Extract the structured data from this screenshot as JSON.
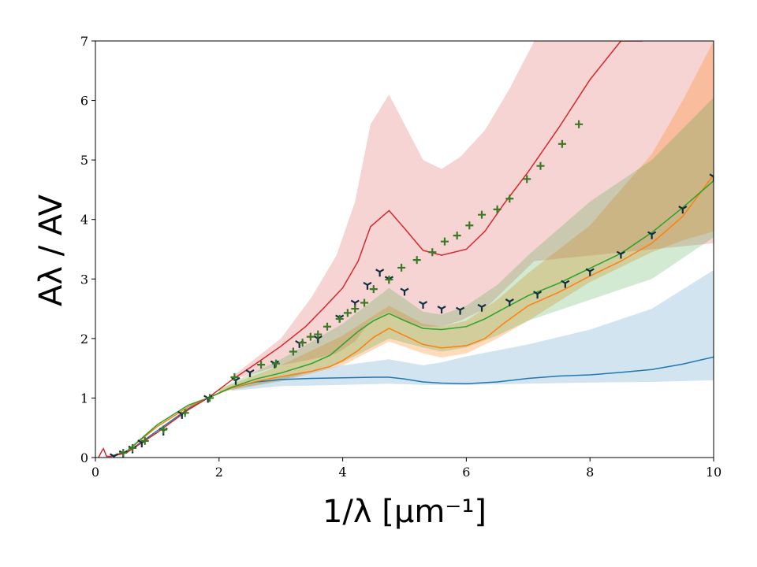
{
  "chart_data": {
    "type": "line",
    "xlabel": "1/λ  [μm⁻¹]",
    "ylabel": "Aλ / AV",
    "xlim": [
      0,
      10
    ],
    "ylim": [
      0,
      7
    ],
    "x_ticks": [
      "0",
      "2",
      "4",
      "6",
      "8",
      "10"
    ],
    "y_ticks": [
      "0",
      "1",
      "2",
      "3",
      "4",
      "5",
      "6",
      "7"
    ],
    "grid": false,
    "legend": "none",
    "bands": [
      {
        "color": "#d62728",
        "opacity": 0.2,
        "x": [
          2.2,
          3.0,
          3.5,
          3.9,
          4.2,
          4.45,
          4.75,
          5.0,
          5.3,
          5.6,
          5.9,
          6.3,
          6.7,
          7.1,
          10.0
        ],
        "upper": [
          1.35,
          2.0,
          2.7,
          3.4,
          4.3,
          5.6,
          6.1,
          5.6,
          5.0,
          4.85,
          5.05,
          5.5,
          6.2,
          7.0,
          7.0
        ],
        "lower": [
          1.3,
          1.55,
          1.65,
          1.75,
          1.95,
          2.3,
          2.45,
          2.3,
          2.2,
          2.2,
          2.3,
          2.5,
          2.9,
          3.3,
          3.6
        ]
      },
      {
        "color": "#ff7f0e",
        "opacity": 0.28,
        "x": [
          2.0,
          3.0,
          4.0,
          4.75,
          5.3,
          5.6,
          6.0,
          6.5,
          7.0,
          8.0,
          9.0,
          9.5,
          10.0
        ],
        "upper": [
          1.15,
          1.55,
          2.05,
          2.55,
          2.25,
          2.2,
          2.3,
          2.65,
          3.1,
          3.9,
          5.1,
          6.0,
          7.0
        ],
        "lower": [
          1.1,
          1.28,
          1.55,
          1.95,
          1.75,
          1.68,
          1.75,
          2.0,
          2.3,
          2.95,
          3.45,
          3.65,
          3.8
        ]
      },
      {
        "color": "#2ca02c",
        "opacity": 0.22,
        "x": [
          2.0,
          3.0,
          4.0,
          4.75,
          5.3,
          5.6,
          6.0,
          6.5,
          7.0,
          8.0,
          9.0,
          10.0
        ],
        "upper": [
          1.15,
          1.65,
          2.25,
          2.85,
          2.45,
          2.4,
          2.55,
          2.9,
          3.4,
          4.3,
          5.0,
          6.05
        ],
        "lower": [
          1.1,
          1.3,
          1.6,
          2.0,
          1.85,
          1.78,
          1.85,
          2.05,
          2.3,
          2.65,
          3.0,
          3.7
        ]
      },
      {
        "color": "#1f77b4",
        "opacity": 0.2,
        "x": [
          2.2,
          3.0,
          4.0,
          4.75,
          5.3,
          5.6,
          6.0,
          7.0,
          8.0,
          9.0,
          10.0
        ],
        "upper": [
          1.15,
          1.35,
          1.55,
          1.65,
          1.55,
          1.6,
          1.7,
          1.9,
          2.15,
          2.5,
          3.15
        ],
        "lower": [
          1.12,
          1.2,
          1.22,
          1.24,
          1.22,
          1.22,
          1.22,
          1.24,
          1.26,
          1.27,
          1.3
        ]
      }
    ],
    "series": [
      {
        "color": "#1f77b4",
        "x": [
          0.25,
          0.5,
          1.0,
          1.5,
          1.82,
          2.2,
          2.6,
          3.0,
          3.5,
          4.0,
          4.5,
          4.75,
          5.0,
          5.3,
          5.6,
          6.0,
          6.5,
          7.0,
          7.5,
          8.0,
          8.5,
          9.0,
          9.5,
          10.0
        ],
        "y": [
          0.02,
          0.08,
          0.45,
          0.82,
          1.0,
          1.17,
          1.27,
          1.31,
          1.33,
          1.34,
          1.35,
          1.35,
          1.32,
          1.27,
          1.25,
          1.24,
          1.27,
          1.33,
          1.37,
          1.39,
          1.43,
          1.48,
          1.57,
          1.69
        ]
      },
      {
        "color": "#ff7f0e",
        "x": [
          0.25,
          0.5,
          1.0,
          1.5,
          1.82,
          2.2,
          2.6,
          3.0,
          3.5,
          3.8,
          4.0,
          4.25,
          4.5,
          4.75,
          5.0,
          5.3,
          5.6,
          6.0,
          6.3,
          6.6,
          7.0,
          7.5,
          8.0,
          8.5,
          9.0,
          9.5,
          10.0
        ],
        "y": [
          0.02,
          0.1,
          0.52,
          0.85,
          1.0,
          1.17,
          1.28,
          1.36,
          1.45,
          1.53,
          1.63,
          1.8,
          2.02,
          2.17,
          2.05,
          1.9,
          1.84,
          1.88,
          2.0,
          2.25,
          2.55,
          2.78,
          3.05,
          3.3,
          3.6,
          4.05,
          4.75
        ]
      },
      {
        "color": "#2ca02c",
        "x": [
          0.25,
          0.5,
          1.0,
          1.5,
          1.82,
          2.2,
          2.6,
          3.0,
          3.5,
          3.8,
          4.0,
          4.25,
          4.5,
          4.75,
          5.0,
          5.3,
          5.6,
          6.0,
          6.3,
          6.6,
          7.0,
          7.5,
          8.0,
          8.5,
          9.0,
          9.5,
          10.0
        ],
        "y": [
          0.02,
          0.1,
          0.55,
          0.88,
          1.0,
          1.18,
          1.32,
          1.42,
          1.58,
          1.72,
          1.9,
          2.12,
          2.3,
          2.42,
          2.3,
          2.17,
          2.15,
          2.2,
          2.33,
          2.5,
          2.72,
          2.93,
          3.18,
          3.43,
          3.78,
          4.2,
          4.65
        ]
      },
      {
        "color": "#d62728",
        "x": [
          0.05,
          0.1,
          0.13,
          0.18,
          0.25,
          0.5,
          1.0,
          1.5,
          1.82,
          2.2,
          2.6,
          3.0,
          3.4,
          3.7,
          4.0,
          4.25,
          4.45,
          4.75,
          5.0,
          5.3,
          5.6,
          6.0,
          6.3,
          6.6,
          7.0,
          7.5,
          8.0,
          8.5,
          8.85
        ],
        "y": [
          0.0,
          0.1,
          0.15,
          0.02,
          0.02,
          0.08,
          0.42,
          0.8,
          1.0,
          1.3,
          1.58,
          1.87,
          2.2,
          2.52,
          2.85,
          3.3,
          3.88,
          4.15,
          3.85,
          3.48,
          3.4,
          3.5,
          3.8,
          4.25,
          4.8,
          5.55,
          6.35,
          7.0,
          7.0
        ]
      }
    ],
    "markers": [
      {
        "symbol": "tri_down",
        "color": "#0f2f40",
        "x": [
          0.3,
          0.45,
          0.6,
          0.75,
          1.1,
          1.4,
          1.82,
          2.27,
          2.5,
          2.9,
          3.3,
          3.6,
          3.95,
          4.2,
          4.4,
          4.6,
          4.75,
          5.0,
          5.3,
          5.6,
          5.9,
          6.25,
          6.7,
          7.15,
          7.6,
          8.0,
          8.5,
          9.0,
          9.5,
          10.0
        ],
        "y": [
          0.02,
          0.07,
          0.15,
          0.25,
          0.45,
          0.73,
          1.0,
          1.3,
          1.43,
          1.58,
          1.92,
          2.0,
          2.35,
          2.6,
          2.9,
          3.12,
          3.0,
          2.8,
          2.58,
          2.5,
          2.48,
          2.53,
          2.62,
          2.75,
          2.93,
          3.13,
          3.42,
          3.75,
          4.18,
          4.72
        ]
      },
      {
        "symbol": "plus",
        "color": "#3a7a25",
        "x": [
          0.45,
          0.6,
          0.8,
          1.1,
          1.45,
          1.85,
          2.25,
          2.68,
          2.92,
          3.2,
          3.35,
          3.48,
          3.6,
          3.75,
          3.95,
          4.08,
          4.2,
          4.35,
          4.5,
          4.75,
          4.95,
          5.2,
          5.45,
          5.65,
          5.85,
          6.05,
          6.25,
          6.5,
          6.7,
          6.98,
          7.2,
          7.55,
          7.82
        ],
        "y": [
          0.08,
          0.16,
          0.28,
          0.47,
          0.75,
          1.0,
          1.35,
          1.56,
          1.58,
          1.78,
          1.93,
          2.03,
          2.07,
          2.2,
          2.33,
          2.43,
          2.5,
          2.6,
          2.83,
          2.99,
          3.19,
          3.32,
          3.45,
          3.63,
          3.73,
          3.9,
          4.08,
          4.17,
          4.35,
          4.68,
          4.9,
          5.27,
          5.6
        ]
      }
    ]
  }
}
